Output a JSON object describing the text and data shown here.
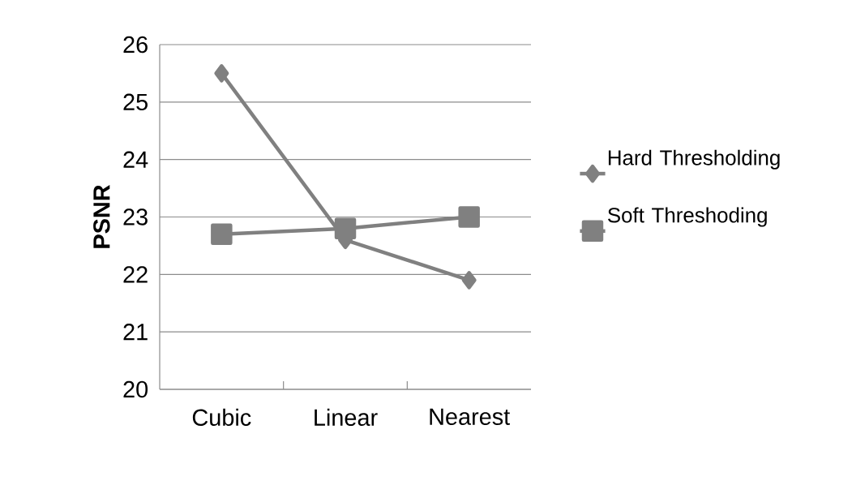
{
  "chart_data": {
    "type": "line",
    "ylabel": "PSNR",
    "categories": [
      "Cubic",
      "Linear",
      "Nearest"
    ],
    "series": [
      {
        "name": "Hard Thresholding",
        "color": "#808080",
        "values": [
          25.5,
          22.6,
          21.9
        ],
        "marker": "diamond"
      },
      {
        "name": "Soft Threshoding",
        "color": "#808080",
        "values": [
          22.7,
          22.8,
          23.0
        ],
        "marker": "square"
      }
    ],
    "ylim": [
      20,
      26
    ],
    "yticks": [
      20,
      21,
      22,
      23,
      24,
      25,
      26
    ],
    "grid": "y",
    "legend": "right",
    "line_style": "solid"
  }
}
